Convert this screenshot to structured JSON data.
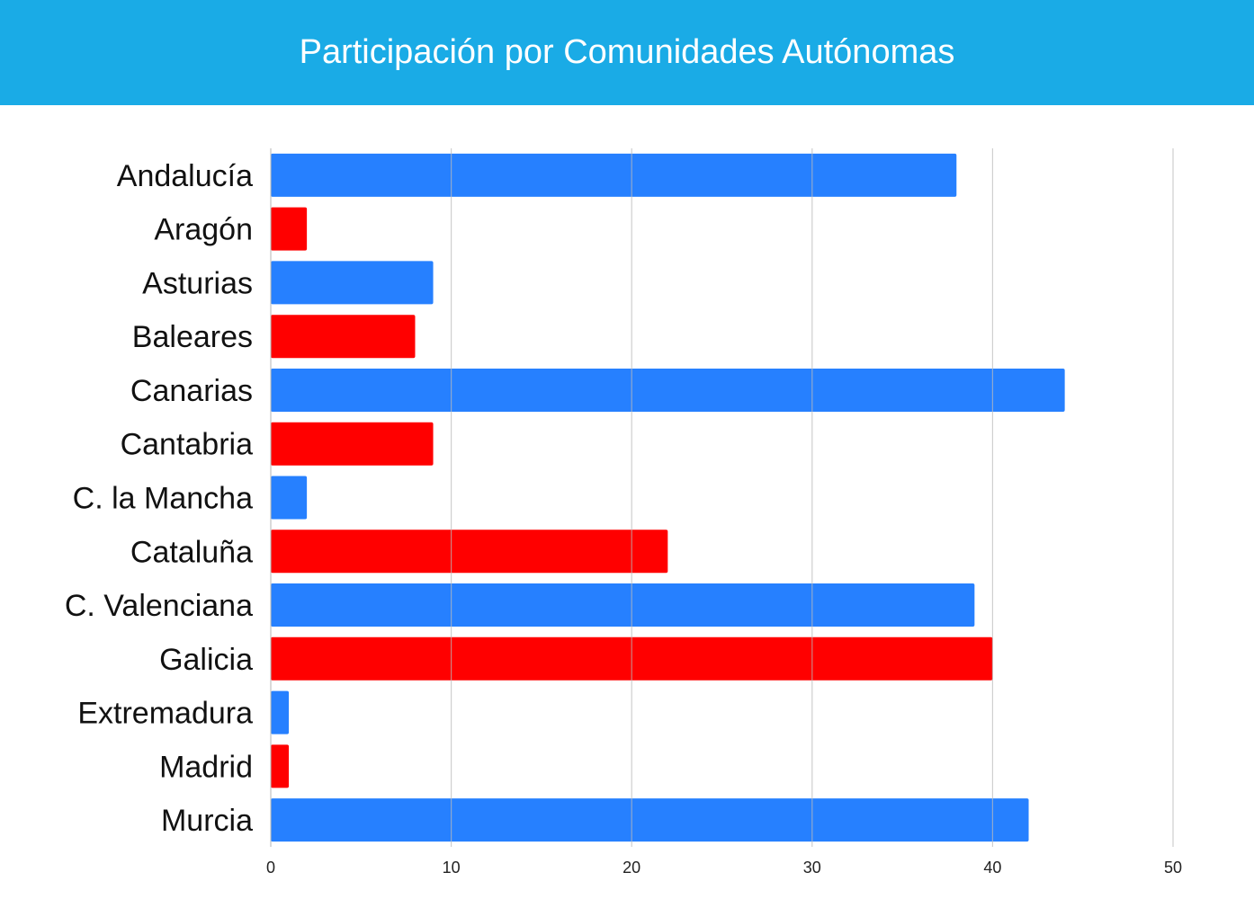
{
  "chart_data": {
    "type": "bar",
    "orientation": "horizontal",
    "title": "Participación por Comunidades Autónomas",
    "categories": [
      "Andalucía",
      "Aragón",
      "Asturias",
      "Baleares",
      "Canarias",
      "Cantabria",
      "C. la Mancha",
      "Cataluña",
      "C. Valenciana",
      "Galicia",
      "Extremadura",
      "Madrid",
      "Murcia"
    ],
    "values": [
      38,
      2,
      9,
      8,
      44,
      9,
      2,
      22,
      39,
      40,
      1,
      1,
      42
    ],
    "bar_colors": [
      "#2680ff",
      "#ff0000"
    ],
    "xlim": [
      0,
      50
    ],
    "xticks": [
      "0",
      "10",
      "20",
      "30",
      "40",
      "50"
    ],
    "xlabel": "",
    "ylabel": "",
    "grid": true,
    "grid_color": "#bbbbbb"
  }
}
